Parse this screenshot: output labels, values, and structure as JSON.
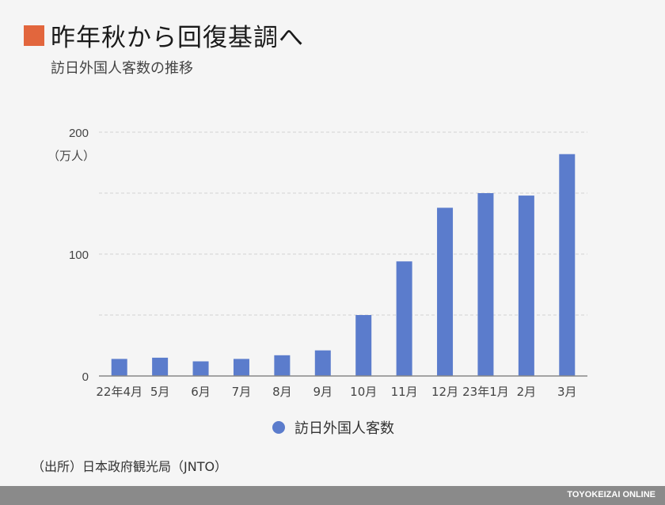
{
  "header": {
    "title": "昨年秋から回復基調へ",
    "subtitle": "訪日外国人客数の推移",
    "marker_color": "#e2663d"
  },
  "footer": {
    "source": "（出所）日本政府観光局（JNTO）",
    "brand": "TOYOKEIZAI ONLINE",
    "bar_color": "#8a8a8a"
  },
  "chart_data": {
    "type": "bar",
    "categories": [
      "22年4月",
      "5月",
      "6月",
      "7月",
      "8月",
      "9月",
      "10月",
      "11月",
      "12月",
      "23年1月",
      "2月",
      "3月"
    ],
    "series": [
      {
        "name": "訪日外国人客数",
        "color": "#5b7ccc",
        "values": [
          14,
          15,
          12,
          14,
          17,
          21,
          50,
          94,
          138,
          150,
          148,
          182
        ]
      }
    ],
    "ylim": [
      0,
      200
    ],
    "yticks": [
      0,
      100,
      200
    ],
    "ytick_labels": [
      "0",
      "100",
      "200"
    ],
    "ylabel": "（万人）",
    "grid": true,
    "legend_position": "bottom"
  }
}
